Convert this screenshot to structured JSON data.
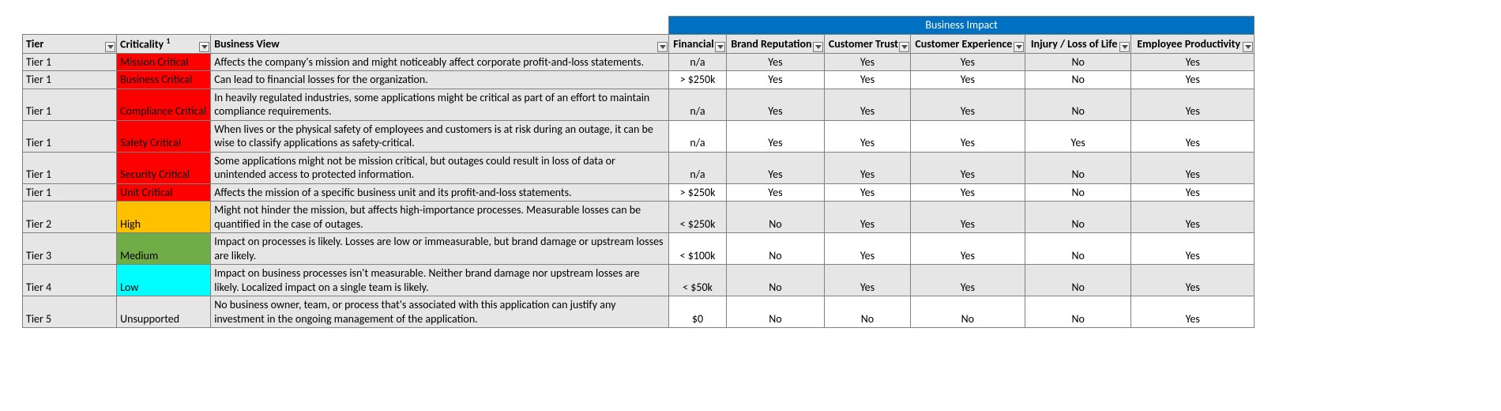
{
  "banner": {
    "label": "Business Impact",
    "bg": "#0070c0",
    "fg": "#ffffff"
  },
  "headers": {
    "tier": "Tier",
    "criticality": "Criticality",
    "criticality_sup": "1",
    "view": "Business View",
    "impacts": [
      "Financial",
      "Brand Reputation",
      "Customer Trust",
      "Customer Experience",
      "Injury / Loss of Life",
      "Employee Productivity"
    ]
  },
  "colors": {
    "header_bg": "#e6e6e6",
    "grid_border": "#808080",
    "alt_row_bg": "#e6e6e6",
    "font": "Calibri"
  },
  "crit_colors": {
    "red": {
      "bg": "#ff0000",
      "fg": "#000000"
    },
    "orange": {
      "bg": "#ffc000",
      "fg": "#000000"
    },
    "green": {
      "bg": "#70ad47",
      "fg": "#000000"
    },
    "cyan": {
      "bg": "#00ffff",
      "fg": "#000000"
    },
    "none": {
      "bg": "#e6e6e6",
      "fg": "#000000"
    }
  },
  "rows": [
    {
      "tier": "Tier 1",
      "criticality": "Mission Critical",
      "crit_color": "red",
      "view": "Affects the company's mission and might noticeably affect corporate profit-and-loss statements.",
      "impacts": [
        "n/a",
        "Yes",
        "Yes",
        "Yes",
        "No",
        "Yes"
      ]
    },
    {
      "tier": "Tier 1",
      "criticality": "Business Critical",
      "crit_color": "red",
      "view": "Can lead to financial losses for the organization.",
      "impacts": [
        "> $250k",
        "Yes",
        "Yes",
        "Yes",
        "No",
        "Yes"
      ]
    },
    {
      "tier": "Tier 1",
      "criticality": "Compliance Critical",
      "crit_color": "red",
      "view": "In heavily regulated industries, some applications might be critical as part of an effort to maintain compliance requirements.",
      "impacts": [
        "n/a",
        "Yes",
        "Yes",
        "Yes",
        "No",
        "Yes"
      ]
    },
    {
      "tier": "Tier 1",
      "criticality": "Safety Critical",
      "crit_color": "red",
      "view": "When lives or the physical safety of employees and customers is at risk during an outage, it can be wise to classify applications as safety-critical.",
      "impacts": [
        "n/a",
        "Yes",
        "Yes",
        "Yes",
        "Yes",
        "Yes"
      ]
    },
    {
      "tier": "Tier 1",
      "criticality": "Security Critical",
      "crit_color": "red",
      "view": "Some applications might not be mission critical, but outages could result in loss of data or unintended access to protected information.",
      "impacts": [
        "n/a",
        "Yes",
        "Yes",
        "Yes",
        "No",
        "Yes"
      ]
    },
    {
      "tier": "Tier 1",
      "criticality": "Unit Critical",
      "crit_color": "red",
      "view": "Affects the mission of a specific business unit and its profit-and-loss statements.",
      "impacts": [
        "> $250k",
        "Yes",
        "Yes",
        "Yes",
        "No",
        "Yes"
      ]
    },
    {
      "tier": "Tier 2",
      "criticality": "High",
      "crit_color": "orange",
      "view": "Might not hinder the mission, but affects high-importance processes. Measurable losses can be quantified in the case of outages.",
      "impacts": [
        "< $250k",
        "No",
        "Yes",
        "Yes",
        "No",
        "Yes"
      ]
    },
    {
      "tier": "Tier 3",
      "criticality": "Medium",
      "crit_color": "green",
      "view": "Impact on processes is likely. Losses are low or immeasurable, but brand damage or upstream losses are likely.",
      "impacts": [
        "< $100k",
        "No",
        "Yes",
        "Yes",
        "No",
        "Yes"
      ]
    },
    {
      "tier": "Tier 4",
      "criticality": "Low",
      "crit_color": "cyan",
      "view": "Impact on business processes isn't measurable. Neither brand damage nor upstream losses are likely. Localized impact on a single team is likely.",
      "impacts": [
        "< $50k",
        "No",
        "Yes",
        "Yes",
        "No",
        "Yes"
      ]
    },
    {
      "tier": "Tier 5",
      "criticality": "Unsupported",
      "crit_color": "none",
      "view": "No business owner, team, or process that's associated with this application can justify any investment in the ongoing management of the application.",
      "impacts": [
        "$0",
        "No",
        "No",
        "No",
        "No",
        "Yes"
      ]
    }
  ]
}
